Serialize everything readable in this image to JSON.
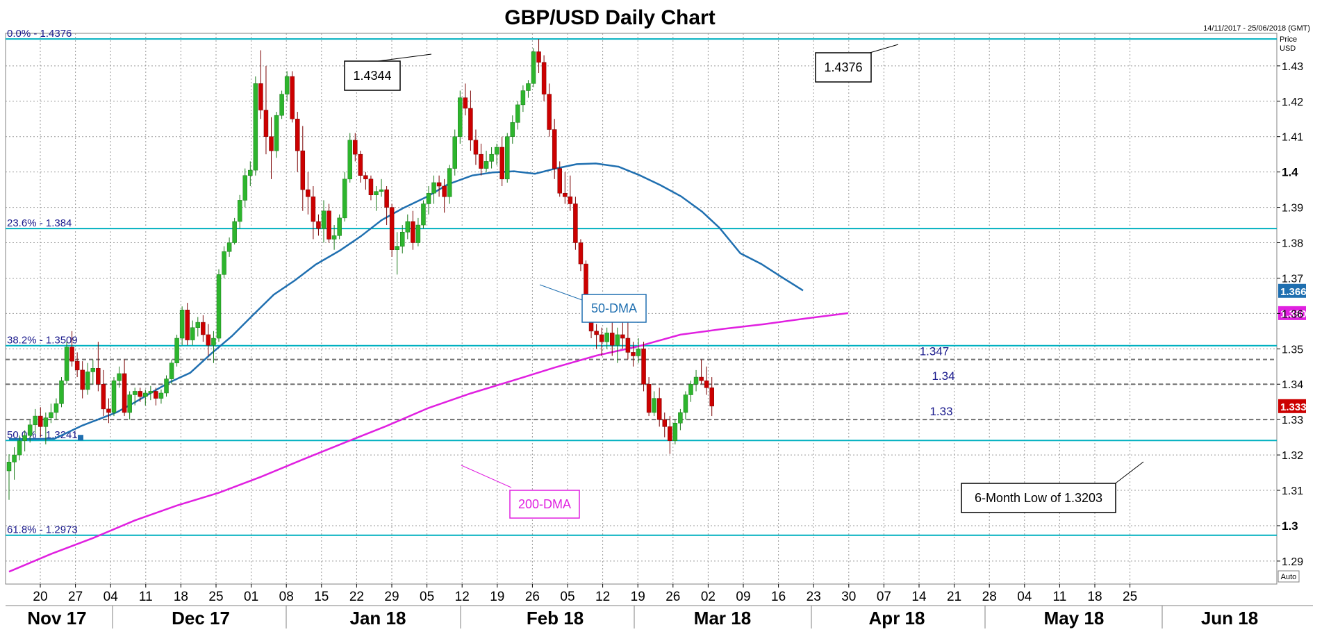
{
  "chart_data": {
    "type": "candlestick",
    "title": "GBP/USD Daily Chart",
    "date_range": "14/11/2017 - 25/06/2018 (GMT)",
    "price_axis_label": [
      "Price",
      "USD"
    ],
    "auto_label": "Auto",
    "ylim": [
      1.2835,
      1.4392
    ],
    "y_ticks": [
      {
        "value": 1.29,
        "label": "1.29"
      },
      {
        "value": 1.3,
        "label": "1.3"
      },
      {
        "value": 1.31,
        "label": "1.31"
      },
      {
        "value": 1.32,
        "label": "1.32"
      },
      {
        "value": 1.33,
        "label": "1.33"
      },
      {
        "value": 1.34,
        "label": "1.34"
      },
      {
        "value": 1.35,
        "label": "1.35"
      },
      {
        "value": 1.36,
        "label": "1.36"
      },
      {
        "value": 1.37,
        "label": "1.37"
      },
      {
        "value": 1.38,
        "label": "1.38"
      },
      {
        "value": 1.39,
        "label": "1.39"
      },
      {
        "value": 1.4,
        "label": "1.4"
      },
      {
        "value": 1.41,
        "label": "1.41"
      },
      {
        "value": 1.42,
        "label": "1.42"
      },
      {
        "value": 1.43,
        "label": "1.43"
      }
    ],
    "bold_y_ticks": [
      "1.3",
      "1.4"
    ],
    "x_ticks": [
      "20",
      "27",
      "04",
      "11",
      "18",
      "25",
      "01",
      "08",
      "15",
      "22",
      "29",
      "05",
      "12",
      "19",
      "26",
      "05",
      "12",
      "19",
      "26",
      "02",
      "09",
      "16",
      "23",
      "30",
      "07",
      "14",
      "21",
      "28",
      "04",
      "11",
      "18",
      "25"
    ],
    "months": [
      "Nov 17",
      "Dec 17",
      "Jan 18",
      "Feb 18",
      "Mar 18",
      "Apr 18",
      "May 18",
      "Jun 18"
    ],
    "fibonacci": [
      {
        "label": "0.0% - 1.4376",
        "value": 1.4376
      },
      {
        "label": "23.6% - 1.384",
        "value": 1.384
      },
      {
        "label": "38.2% - 1.3509",
        "value": 1.3509
      },
      {
        "label": "50.0% - 1.3241",
        "value": 1.3241
      },
      {
        "label": "61.8% - 1.2973",
        "value": 1.2973
      }
    ],
    "levels": [
      {
        "label": "1.347",
        "value": 1.347
      },
      {
        "label": "1.34",
        "value": 1.34
      },
      {
        "label": "1.33",
        "value": 1.33
      }
    ],
    "annotations": [
      {
        "text": "1.4344",
        "date_index": 120
      },
      {
        "text": "1.4376",
        "date_index": 240
      },
      {
        "text": "6-Month Low of 1.3203",
        "date_index": 325
      },
      {
        "text": "50-DMA",
        "date_index": 152
      },
      {
        "text": "200-DMA",
        "date_index": 128
      }
    ],
    "price_tags": [
      {
        "label": "1.3664",
        "value": 1.3664,
        "color": "#1f6fb0"
      },
      {
        "label": "1.3601",
        "value": 1.3601,
        "color": "#e020e0"
      },
      {
        "label": "1.3338",
        "value": 1.3338,
        "color": "#cc0000"
      }
    ],
    "colors": {
      "up": "#2db52d",
      "down": "#cc0000",
      "fib": "#00b0c0",
      "dma50": "#1f6fb0",
      "dma200": "#e020e0",
      "grid": "#999999"
    },
    "series_ohlc": [
      [
        1.3155,
        1.3202,
        1.3073,
        1.318
      ],
      [
        1.318,
        1.3222,
        1.313,
        1.32
      ],
      [
        1.32,
        1.3255,
        1.3185,
        1.324
      ],
      [
        1.324,
        1.327,
        1.321,
        1.3255
      ],
      [
        1.3255,
        1.33,
        1.3235,
        1.3285
      ],
      [
        1.3285,
        1.333,
        1.326,
        1.331
      ],
      [
        1.331,
        1.3335,
        1.325,
        1.328
      ],
      [
        1.328,
        1.332,
        1.323,
        1.3305
      ],
      [
        1.3305,
        1.3345,
        1.329,
        1.332
      ],
      [
        1.332,
        1.336,
        1.33,
        1.3345
      ],
      [
        1.3345,
        1.342,
        1.3335,
        1.341
      ],
      [
        1.341,
        1.352,
        1.34,
        1.3505
      ],
      [
        1.3505,
        1.355,
        1.345,
        1.3465
      ],
      [
        1.3465,
        1.349,
        1.342,
        1.344
      ],
      [
        1.344,
        1.3465,
        1.336,
        1.3385
      ],
      [
        1.3385,
        1.346,
        1.337,
        1.3435
      ],
      [
        1.3435,
        1.347,
        1.34,
        1.3445
      ],
      [
        1.3445,
        1.352,
        1.338,
        1.34
      ],
      [
        1.34,
        1.344,
        1.331,
        1.333
      ],
      [
        1.333,
        1.336,
        1.329,
        1.332
      ],
      [
        1.332,
        1.342,
        1.331,
        1.341
      ],
      [
        1.341,
        1.345,
        1.339,
        1.343
      ],
      [
        1.343,
        1.347,
        1.331,
        1.332
      ],
      [
        1.332,
        1.338,
        1.33,
        1.337
      ],
      [
        1.337,
        1.339,
        1.334,
        1.338
      ],
      [
        1.338,
        1.339,
        1.335,
        1.3365
      ],
      [
        1.3365,
        1.3385,
        1.334,
        1.3375
      ],
      [
        1.3375,
        1.3395,
        1.3355,
        1.338
      ],
      [
        1.338,
        1.339,
        1.334,
        1.336
      ],
      [
        1.336,
        1.3385,
        1.3345,
        1.3375
      ],
      [
        1.3375,
        1.3425,
        1.3365,
        1.3415
      ],
      [
        1.3415,
        1.347,
        1.34,
        1.346
      ],
      [
        1.346,
        1.354,
        1.345,
        1.353
      ],
      [
        1.353,
        1.362,
        1.351,
        1.361
      ],
      [
        1.361,
        1.363,
        1.351,
        1.3525
      ],
      [
        1.3525,
        1.358,
        1.351,
        1.356
      ],
      [
        1.356,
        1.359,
        1.3535,
        1.3575
      ],
      [
        1.3575,
        1.3595,
        1.352,
        1.354
      ],
      [
        1.354,
        1.357,
        1.348,
        1.351
      ],
      [
        1.351,
        1.355,
        1.346,
        1.353
      ],
      [
        1.353,
        1.3725,
        1.352,
        1.371
      ],
      [
        1.371,
        1.379,
        1.37,
        1.3775
      ],
      [
        1.3775,
        1.3815,
        1.376,
        1.38
      ],
      [
        1.38,
        1.387,
        1.3795,
        1.386
      ],
      [
        1.386,
        1.3935,
        1.384,
        1.392
      ],
      [
        1.392,
        1.401,
        1.39,
        1.399
      ],
      [
        1.399,
        1.403,
        1.396,
        1.4005
      ],
      [
        1.4005,
        1.427,
        1.399,
        1.425
      ],
      [
        1.425,
        1.4344,
        1.415,
        1.4175
      ],
      [
        1.4175,
        1.43,
        1.405,
        1.41
      ],
      [
        1.41,
        1.4155,
        1.398,
        1.406
      ],
      [
        1.406,
        1.417,
        1.404,
        1.416
      ],
      [
        1.416,
        1.423,
        1.415,
        1.422
      ],
      [
        1.422,
        1.4285,
        1.42,
        1.427
      ],
      [
        1.427,
        1.4285,
        1.414,
        1.415
      ],
      [
        1.415,
        1.417,
        1.4,
        1.406
      ],
      [
        1.406,
        1.413,
        1.389,
        1.395
      ],
      [
        1.395,
        1.4,
        1.388,
        1.393
      ],
      [
        1.393,
        1.396,
        1.381,
        1.386
      ],
      [
        1.386,
        1.388,
        1.382,
        1.384
      ],
      [
        1.384,
        1.392,
        1.38,
        1.389
      ],
      [
        1.389,
        1.391,
        1.38,
        1.381
      ],
      [
        1.381,
        1.385,
        1.378,
        1.382
      ],
      [
        1.382,
        1.388,
        1.381,
        1.387
      ],
      [
        1.387,
        1.4,
        1.386,
        1.398
      ],
      [
        1.398,
        1.411,
        1.397,
        1.409
      ],
      [
        1.409,
        1.411,
        1.403,
        1.405
      ],
      [
        1.405,
        1.406,
        1.397,
        1.399
      ],
      [
        1.399,
        1.4,
        1.395,
        1.398
      ],
      [
        1.398,
        1.399,
        1.392,
        1.3935
      ],
      [
        1.3935,
        1.396,
        1.389,
        1.3945
      ],
      [
        1.3945,
        1.398,
        1.393,
        1.395
      ],
      [
        1.395,
        1.396,
        1.385,
        1.39
      ],
      [
        1.39,
        1.391,
        1.376,
        1.378
      ],
      [
        1.378,
        1.383,
        1.371,
        1.379
      ],
      [
        1.379,
        1.385,
        1.377,
        1.383
      ],
      [
        1.383,
        1.388,
        1.381,
        1.386
      ],
      [
        1.386,
        1.389,
        1.378,
        1.38
      ],
      [
        1.38,
        1.387,
        1.379,
        1.385
      ],
      [
        1.385,
        1.392,
        1.384,
        1.391
      ],
      [
        1.391,
        1.396,
        1.388,
        1.394
      ],
      [
        1.394,
        1.399,
        1.391,
        1.397
      ],
      [
        1.397,
        1.399,
        1.393,
        1.396
      ],
      [
        1.396,
        1.398,
        1.3885,
        1.393
      ],
      [
        1.393,
        1.402,
        1.391,
        1.401
      ],
      [
        1.401,
        1.412,
        1.399,
        1.41
      ],
      [
        1.41,
        1.423,
        1.408,
        1.421
      ],
      [
        1.421,
        1.425,
        1.416,
        1.418
      ],
      [
        1.418,
        1.423,
        1.406,
        1.409
      ],
      [
        1.409,
        1.412,
        1.402,
        1.405
      ],
      [
        1.405,
        1.408,
        1.399,
        1.401
      ],
      [
        1.401,
        1.406,
        1.4,
        1.403
      ],
      [
        1.403,
        1.407,
        1.401,
        1.405
      ],
      [
        1.405,
        1.408,
        1.402,
        1.407
      ],
      [
        1.407,
        1.41,
        1.396,
        1.398
      ],
      [
        1.398,
        1.411,
        1.397,
        1.41
      ],
      [
        1.41,
        1.416,
        1.408,
        1.414
      ],
      [
        1.414,
        1.42,
        1.412,
        1.419
      ],
      [
        1.419,
        1.4245,
        1.417,
        1.423
      ],
      [
        1.423,
        1.426,
        1.421,
        1.425
      ],
      [
        1.425,
        1.435,
        1.424,
        1.434
      ],
      [
        1.434,
        1.4376,
        1.428,
        1.431
      ],
      [
        1.431,
        1.433,
        1.42,
        1.422
      ],
      [
        1.422,
        1.425,
        1.41,
        1.412
      ],
      [
        1.412,
        1.415,
        1.398,
        1.401
      ],
      [
        1.401,
        1.403,
        1.393,
        1.394
      ],
      [
        1.394,
        1.4,
        1.391,
        1.393
      ],
      [
        1.393,
        1.399,
        1.389,
        1.391
      ],
      [
        1.391,
        1.393,
        1.378,
        1.38
      ],
      [
        1.38,
        1.381,
        1.372,
        1.374
      ],
      [
        1.374,
        1.375,
        1.361,
        1.362
      ],
      [
        1.362,
        1.364,
        1.353,
        1.355
      ],
      [
        1.355,
        1.357,
        1.35,
        1.354
      ],
      [
        1.354,
        1.356,
        1.348,
        1.352
      ],
      [
        1.352,
        1.356,
        1.35,
        1.3545
      ],
      [
        1.3545,
        1.362,
        1.348,
        1.351
      ],
      [
        1.351,
        1.356,
        1.346,
        1.354
      ],
      [
        1.354,
        1.36,
        1.35,
        1.353
      ],
      [
        1.353,
        1.358,
        1.347,
        1.349
      ],
      [
        1.349,
        1.352,
        1.345,
        1.348
      ],
      [
        1.348,
        1.353,
        1.346,
        1.35
      ],
      [
        1.35,
        1.352,
        1.338,
        1.34
      ],
      [
        1.34,
        1.342,
        1.331,
        1.332
      ],
      [
        1.332,
        1.338,
        1.331,
        1.336
      ],
      [
        1.336,
        1.339,
        1.328,
        1.33
      ],
      [
        1.33,
        1.332,
        1.325,
        1.328
      ],
      [
        1.328,
        1.331,
        1.3203,
        1.324
      ],
      [
        1.324,
        1.33,
        1.323,
        1.329
      ],
      [
        1.329,
        1.333,
        1.327,
        1.332
      ],
      [
        1.332,
        1.338,
        1.33,
        1.337
      ],
      [
        1.337,
        1.341,
        1.335,
        1.34
      ],
      [
        1.34,
        1.344,
        1.338,
        1.342
      ],
      [
        1.342,
        1.347,
        1.34,
        1.341
      ],
      [
        1.341,
        1.345,
        1.337,
        1.339
      ],
      [
        1.339,
        1.342,
        1.331,
        1.3338
      ]
    ],
    "series_dma50": [
      [
        0,
        1.3245
      ],
      [
        10,
        1.3245
      ],
      [
        26,
        1.3246
      ],
      [
        33,
        1.3262
      ],
      [
        42,
        1.3283
      ],
      [
        52,
        1.3302
      ],
      [
        62,
        1.3321
      ],
      [
        72,
        1.3348
      ],
      [
        82,
        1.3377
      ],
      [
        92,
        1.3405
      ],
      [
        104,
        1.3432
      ],
      [
        116,
        1.3486
      ],
      [
        128,
        1.3536
      ],
      [
        140,
        1.3595
      ],
      [
        152,
        1.3653
      ],
      [
        164,
        1.3693
      ],
      [
        176,
        1.3738
      ],
      [
        190,
        1.3778
      ],
      [
        202,
        1.3818
      ],
      [
        214,
        1.3864
      ],
      [
        226,
        1.3897
      ],
      [
        240,
        1.393
      ],
      [
        252,
        1.3965
      ],
      [
        266,
        1.399
      ],
      [
        278,
        1.3999
      ],
      [
        290,
        1.4002
      ],
      [
        302,
        1.3995
      ],
      [
        314,
        1.401
      ],
      [
        326,
        1.4022
      ],
      [
        337,
        1.4024
      ],
      [
        350,
        1.4015
      ],
      [
        362,
        1.3991
      ],
      [
        374,
        1.3963
      ],
      [
        386,
        1.3931
      ],
      [
        398,
        1.3888
      ],
      [
        408,
        1.3842
      ],
      [
        420,
        1.377
      ],
      [
        432,
        1.374
      ],
      [
        444,
        1.3702
      ],
      [
        456,
        1.3665
      ]
    ],
    "series_dma200": [
      [
        0,
        1.287
      ],
      [
        40,
        1.292
      ],
      [
        80,
        1.2965
      ],
      [
        120,
        1.3015
      ],
      [
        160,
        1.3057
      ],
      [
        200,
        1.3093
      ],
      [
        240,
        1.3138
      ],
      [
        280,
        1.3187
      ],
      [
        320,
        1.3235
      ],
      [
        360,
        1.3282
      ],
      [
        400,
        1.3333
      ],
      [
        440,
        1.3374
      ],
      [
        480,
        1.341
      ],
      [
        520,
        1.3447
      ],
      [
        560,
        1.3481
      ],
      [
        600,
        1.3507
      ],
      [
        640,
        1.354
      ],
      [
        680,
        1.3556
      ],
      [
        720,
        1.357
      ],
      [
        760,
        1.3586
      ],
      [
        800,
        1.3601
      ]
    ]
  }
}
